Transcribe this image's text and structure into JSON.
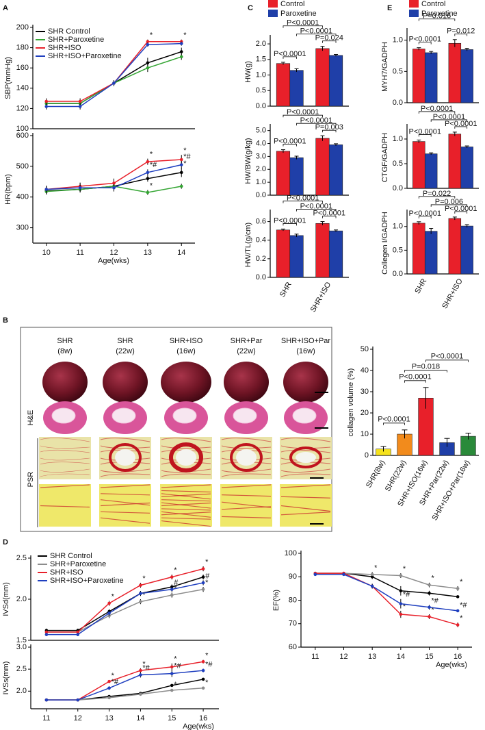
{
  "figure": {
    "panel_letters": [
      "A",
      "B",
      "C",
      "D",
      "E"
    ],
    "histology": {
      "columns": [
        {
          "name": "SHR",
          "age": "(8w)"
        },
        {
          "name": "SHR",
          "age": "(22w)"
        },
        {
          "name": "SHR+ISO",
          "age": "(16w)"
        },
        {
          "name": "SHR+Par",
          "age": "(22w)"
        },
        {
          "name": "SHR+ISO+Par",
          "age": "(16w)"
        }
      ],
      "rows": [
        "H&E",
        "PSR"
      ]
    }
  },
  "chart_data": [
    {
      "type": "line",
      "ylabel": "SBP(mmHg)",
      "x": [
        10,
        11,
        12,
        13,
        14
      ],
      "xlim": [
        9.6,
        14.4
      ],
      "ylim": [
        100,
        200
      ],
      "yticks": [
        100,
        120,
        140,
        160,
        180,
        200
      ],
      "legend": true,
      "series": [
        {
          "name": "SHR Control",
          "color": "#000000",
          "values": [
            125,
            125,
            145,
            165,
            176
          ],
          "errors": [
            3,
            3,
            3,
            5,
            4
          ]
        },
        {
          "name": "SHR+Paroxetine",
          "color": "#33a532",
          "values": [
            125,
            125,
            145,
            160,
            171
          ],
          "errors": [
            3,
            3,
            2,
            4,
            3
          ]
        },
        {
          "name": "SHR+ISO",
          "color": "#e8202a",
          "values": [
            127,
            127,
            145,
            186,
            186
          ],
          "errors": [
            3,
            3,
            2,
            2,
            2
          ],
          "point_labels": [
            null,
            null,
            null,
            "*",
            "*"
          ]
        },
        {
          "name": "SHR+ISO+Paroxetine",
          "color": "#1f3fbf",
          "values": [
            122,
            122,
            145,
            183,
            184
          ],
          "errors": [
            3,
            3,
            2,
            2,
            2
          ]
        }
      ]
    },
    {
      "type": "line",
      "ylabel": "HR(bpm)",
      "xlabel": "Age(wks)",
      "x": [
        10,
        11,
        12,
        13,
        14
      ],
      "xlim": [
        9.6,
        14.4
      ],
      "xticks": [
        10,
        11,
        12,
        13,
        14
      ],
      "ylim": [
        250,
        600
      ],
      "yticks": [
        300,
        400,
        500,
        600
      ],
      "series": [
        {
          "color": "#000000",
          "values": [
            420,
            425,
            435,
            460,
            480
          ],
          "errors": [
            10,
            10,
            12,
            10,
            15
          ],
          "point_labels": [
            null,
            null,
            null,
            null,
            "*"
          ]
        },
        {
          "color": "#33a532",
          "values": [
            418,
            425,
            435,
            415,
            435
          ],
          "errors": [
            10,
            10,
            10,
            8,
            8
          ],
          "point_labels": [
            null,
            null,
            null,
            "*",
            null
          ]
        },
        {
          "color": "#e8202a",
          "values": [
            425,
            435,
            445,
            515,
            522
          ],
          "errors": [
            10,
            12,
            15,
            10,
            15
          ],
          "point_labels": [
            null,
            null,
            null,
            "*",
            "*"
          ]
        },
        {
          "color": "#1f3fbf",
          "values": [
            425,
            430,
            430,
            480,
            505
          ],
          "errors": [
            12,
            15,
            12,
            10,
            12
          ],
          "point_labels": [
            null,
            null,
            null,
            "*#",
            "*#"
          ]
        }
      ]
    },
    {
      "type": "grouped-bar",
      "ylabel": "HW(g)",
      "ylim": [
        0,
        2.2
      ],
      "yticks": [
        {
          "value": 0,
          "label": "0.0"
        },
        0.5,
        {
          "value": 1,
          "label": "1.0"
        },
        1.5,
        {
          "value": 2,
          "label": "2.0"
        }
      ],
      "legend": true,
      "series": [
        {
          "name": "Control",
          "color": "#e8202a",
          "values": [
            1.37,
            1.85
          ],
          "errors": [
            0.04,
            0.07
          ]
        },
        {
          "name": "Paroxetine",
          "color": "#1f3fa8",
          "values": [
            1.15,
            1.63
          ],
          "errors": [
            0.05,
            0.03
          ]
        }
      ],
      "comparisons": [
        "P<0.0001",
        "P=0.024",
        "P<0.0001",
        "P<0.0001"
      ]
    },
    {
      "type": "grouped-bar",
      "ylabel": "HW/BW(g/kg)",
      "ylim": [
        0,
        5.3
      ],
      "yticks": [
        {
          "value": 0,
          "label": "0.0"
        },
        {
          "value": 1,
          "label": "1.0"
        },
        {
          "value": 2,
          "label": "2.0"
        },
        {
          "value": 3,
          "label": "3.0"
        },
        {
          "value": 4,
          "label": "4.0"
        },
        {
          "value": 5,
          "label": "5.0"
        }
      ],
      "series": [
        {
          "color": "#e8202a",
          "values": [
            3.4,
            4.4
          ],
          "errors": [
            0.12,
            0.2
          ]
        },
        {
          "color": "#1f3fa8",
          "values": [
            2.9,
            3.9
          ],
          "errors": [
            0.12,
            0.08
          ]
        }
      ],
      "comparisons": [
        "P<0.0001",
        "P=0.003",
        "P<0.0001",
        "P<0.0001"
      ]
    },
    {
      "type": "grouped-bar",
      "ylabel": "HW/TL(g/cm)",
      "categories": [
        "SHR",
        "SHR+ISO"
      ],
      "ylim": [
        0,
        0.7
      ],
      "yticks": [
        {
          "value": 0,
          "label": "0.0"
        },
        0.2,
        0.4,
        0.6
      ],
      "series": [
        {
          "color": "#e8202a",
          "values": [
            0.51,
            0.58
          ],
          "errors": [
            0.01,
            0.02
          ]
        },
        {
          "color": "#1f3fa8",
          "values": [
            0.45,
            0.5
          ],
          "errors": [
            0.015,
            0.01
          ]
        }
      ],
      "comparisons": [
        "P<0.0001",
        "P<0.0001",
        "P<0.0001",
        "P<0.0001"
      ]
    },
    {
      "type": "grouped-bar",
      "ylabel": "MYH7/GADPH",
      "ylim": [
        0,
        1.15
      ],
      "yticks": [
        {
          "value": 0,
          "label": "0.0"
        },
        0.5,
        {
          "value": 1,
          "label": "1.0"
        }
      ],
      "legend": true,
      "series": [
        {
          "name": "Control",
          "color": "#e8202a",
          "values": [
            0.86,
            0.95
          ],
          "errors": [
            0.02,
            0.06
          ]
        },
        {
          "name": "Paroxetine",
          "color": "#1f3fa8",
          "values": [
            0.8,
            0.85
          ],
          "errors": [
            0.02,
            0.02
          ]
        }
      ],
      "comparisons": [
        "P<0.0001",
        "P=0.012",
        "P=0.016",
        null
      ]
    },
    {
      "type": "grouped-bar",
      "ylabel": "CTGF/GADPH",
      "ylim": [
        0,
        1.25
      ],
      "yticks": [
        {
          "value": 0,
          "label": "0.0"
        },
        0.5,
        {
          "value": 1,
          "label": "1.0"
        }
      ],
      "series": [
        {
          "color": "#e8202a",
          "values": [
            0.95,
            1.1
          ],
          "errors": [
            0.03,
            0.04
          ]
        },
        {
          "color": "#1f3fa8",
          "values": [
            0.7,
            0.84
          ],
          "errors": [
            0.02,
            0.02
          ]
        }
      ],
      "comparisons": [
        "P<0.0001",
        "P<0.0001",
        "P<0.0001",
        "P<0.0001"
      ]
    },
    {
      "type": "grouped-bar",
      "ylabel": "Collegen I/GADPH",
      "categories": [
        "SHR",
        "SHR+ISO"
      ],
      "ylim": [
        0,
        1.3
      ],
      "yticks": [
        {
          "value": 0,
          "label": "0.0"
        },
        0.5,
        {
          "value": 1,
          "label": "1.0"
        }
      ],
      "series": [
        {
          "color": "#e8202a",
          "values": [
            1.07,
            1.17
          ],
          "errors": [
            0.03,
            0.03
          ]
        },
        {
          "color": "#1f3fa8",
          "values": [
            0.9,
            1.01
          ],
          "errors": [
            0.06,
            0.03
          ]
        }
      ],
      "comparisons": [
        "P<0.0001",
        "P<0.0001",
        "P=0.022",
        "P=0.006"
      ]
    },
    {
      "type": "bar",
      "ylabel": "collagen volume (%)",
      "categories": [
        "SHR(8w)",
        "SHR(22w)",
        "SHR+ISO(16w)",
        "SHR+Par(22w)",
        "SHR+ISO+Par(16w)"
      ],
      "values": [
        3,
        10,
        27,
        6,
        9
      ],
      "errors": [
        1.2,
        2,
        5,
        2,
        1.5
      ],
      "colors": [
        "#f5e21b",
        "#f28b1c",
        "#e8202a",
        "#1f3fa8",
        "#2a8a3a"
      ],
      "ylim": [
        0,
        50
      ],
      "yticks": [
        0,
        10,
        20,
        30,
        40,
        50
      ],
      "comparisons": [
        "P<0.0001",
        "P<0.0001",
        "P=0.018",
        "P<0.0001"
      ]
    },
    {
      "type": "line",
      "ylabel": "IVSd(mm)",
      "x": [
        11,
        12,
        13,
        14,
        15,
        16
      ],
      "xlim": [
        10.5,
        16.5
      ],
      "ylim": [
        1.5,
        2.5
      ],
      "yticks": [
        1.5,
        {
          "value": 2,
          "label": "2.0"
        },
        2.5
      ],
      "legend": true,
      "series": [
        {
          "name": "SHR Control",
          "color": "#000000",
          "values": [
            1.62,
            1.62,
            1.85,
            2.07,
            2.15,
            2.27
          ],
          "errors": [
            0.02,
            0.02,
            0.03,
            0.03,
            0.03,
            0.03
          ]
        },
        {
          "name": "SHR+Paroxetine",
          "color": "#8c8c8c",
          "values": [
            1.6,
            1.6,
            1.8,
            1.97,
            2.05,
            2.12
          ],
          "errors": [
            0.02,
            0.02,
            0.03,
            0.03,
            0.03,
            0.03
          ],
          "point_labels": [
            null,
            null,
            null,
            "*",
            "*",
            "*"
          ]
        },
        {
          "name": "SHR+ISO",
          "color": "#e8202a",
          "values": [
            1.6,
            1.6,
            1.95,
            2.17,
            2.27,
            2.37
          ],
          "errors": [
            0.02,
            0.02,
            0.03,
            0.03,
            0.03,
            0.03
          ],
          "point_labels": [
            null,
            null,
            "*",
            "*",
            "*",
            "*"
          ]
        },
        {
          "name": "SHR+ISO+Paroxetine",
          "color": "#1f3fbf",
          "values": [
            1.57,
            1.57,
            1.83,
            2.07,
            2.12,
            2.2
          ],
          "errors": [
            0.02,
            0.02,
            0.03,
            0.03,
            0.03,
            0.03
          ],
          "point_labels": [
            null,
            null,
            null,
            null,
            "#",
            "#"
          ]
        }
      ]
    },
    {
      "type": "line",
      "ylabel": "IVSs(mm)",
      "xlabel": "Age(wks)",
      "x": [
        11,
        12,
        13,
        14,
        15,
        16
      ],
      "xlim": [
        10.5,
        16.5
      ],
      "xticks": [
        11,
        12,
        13,
        14,
        15,
        16
      ],
      "ylim": [
        1.6,
        3.0
      ],
      "yticks": [
        {
          "value": 2,
          "label": "2.0"
        },
        2.5,
        {
          "value": 3,
          "label": "3.0"
        }
      ],
      "series": [
        {
          "color": "#000000",
          "values": [
            1.8,
            1.8,
            1.88,
            1.95,
            2.13,
            2.27
          ],
          "errors": [
            0.03,
            0.03,
            0.03,
            0.03,
            0.03,
            0.03
          ]
        },
        {
          "color": "#8c8c8c",
          "values": [
            1.8,
            1.8,
            1.85,
            1.93,
            2.02,
            2.07
          ],
          "errors": [
            0.03,
            0.03,
            0.03,
            0.03,
            0.03,
            0.03
          ],
          "point_labels": [
            null,
            null,
            null,
            null,
            "*",
            "*"
          ]
        },
        {
          "color": "#e8202a",
          "values": [
            1.8,
            1.8,
            2.22,
            2.47,
            2.55,
            2.67
          ],
          "errors": [
            0.03,
            0.03,
            0.03,
            0.05,
            0.08,
            0.04
          ],
          "point_labels": [
            null,
            null,
            "*",
            "*",
            "*",
            "*"
          ]
        },
        {
          "color": "#1f3fbf",
          "values": [
            1.8,
            1.8,
            2.07,
            2.37,
            2.4,
            2.47
          ],
          "errors": [
            0.03,
            0.03,
            0.04,
            0.06,
            0.08,
            0.04
          ],
          "point_labels": [
            null,
            null,
            "*#",
            "*#",
            "*#",
            "*#"
          ]
        }
      ]
    },
    {
      "type": "line",
      "ylabel": "EF(%)",
      "xlabel": "Age(wks)",
      "x": [
        11,
        12,
        13,
        14,
        15,
        16
      ],
      "xlim": [
        10.5,
        16.5
      ],
      "xticks": [
        11,
        12,
        13,
        14,
        15,
        16
      ],
      "ylim": [
        60,
        100
      ],
      "yticks": [
        60,
        70,
        80,
        90,
        100
      ],
      "series": [
        {
          "color": "#000000",
          "values": [
            91.5,
            91.5,
            90,
            84,
            83,
            81.5
          ],
          "errors": [
            0.5,
            0.5,
            1,
            2,
            1,
            0.5
          ]
        },
        {
          "color": "#8c8c8c",
          "values": [
            91.5,
            91.5,
            91,
            90.5,
            86.5,
            85
          ],
          "errors": [
            0.5,
            0.5,
            1,
            1,
            1,
            1
          ],
          "point_labels": [
            null,
            null,
            "*",
            "*",
            "*",
            "*"
          ]
        },
        {
          "color": "#e8202a",
          "values": [
            91.5,
            91.5,
            86,
            74,
            73,
            69.5
          ],
          "errors": [
            0.5,
            0.5,
            1,
            1.5,
            1,
            1
          ],
          "point_labels": [
            null,
            null,
            null,
            "*",
            "*",
            "*"
          ]
        },
        {
          "color": "#1f3fbf",
          "values": [
            91,
            91,
            86,
            78.5,
            77,
            75.5
          ],
          "errors": [
            0.5,
            0.5,
            1,
            2,
            1,
            0.5
          ],
          "point_labels": [
            null,
            null,
            null,
            "*#",
            "*#",
            "*#"
          ]
        }
      ]
    }
  ]
}
